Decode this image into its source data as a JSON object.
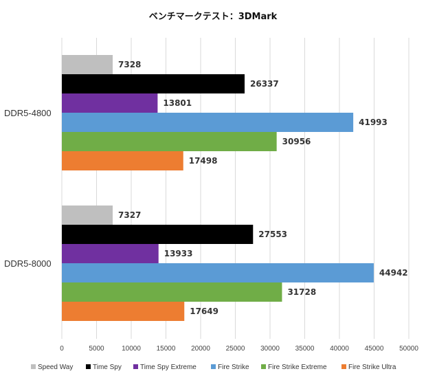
{
  "chart_data": {
    "type": "bar",
    "orientation": "horizontal",
    "title": "ベンチマークテスト：3DMark",
    "categories": [
      "DDR5-4800",
      "DDR5-8000"
    ],
    "series": [
      {
        "name": "Speed Way",
        "color": "#bfbfbf",
        "values": [
          7328,
          7327
        ]
      },
      {
        "name": "Time Spy",
        "color": "#000000",
        "values": [
          26337,
          27553
        ]
      },
      {
        "name": "Time Spy Extreme",
        "color": "#7030a0",
        "values": [
          13801,
          13933
        ]
      },
      {
        "name": "Fire Strike",
        "color": "#5b9bd5",
        "values": [
          41993,
          44942
        ]
      },
      {
        "name": "Fire Strike Extreme",
        "color": "#70ad47",
        "values": [
          30956,
          31728
        ]
      },
      {
        "name": "Fire Strike Ultra",
        "color": "#ed7d31",
        "values": [
          17498,
          17649
        ]
      }
    ],
    "xlim": [
      0,
      50000
    ],
    "xticks": [
      0,
      5000,
      10000,
      15000,
      20000,
      25000,
      30000,
      35000,
      40000,
      45000,
      50000
    ],
    "xlabel": "",
    "ylabel": "",
    "grid": true,
    "legend_position": "bottom"
  }
}
